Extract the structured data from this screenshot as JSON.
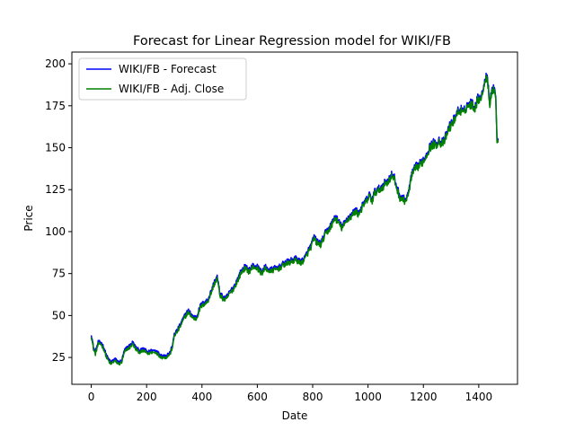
{
  "chart_data": {
    "type": "line",
    "title": "Forecast for Linear Regression model for WIKI/FB",
    "xlabel": "Date",
    "ylabel": "Price",
    "xlim": [
      -70,
      1540
    ],
    "ylim": [
      9,
      207
    ],
    "xticks": [
      0,
      200,
      400,
      600,
      800,
      1000,
      1200,
      1400
    ],
    "yticks": [
      25,
      50,
      75,
      100,
      125,
      150,
      175,
      200
    ],
    "grid": false,
    "legend_position": "top-left",
    "anchors": [
      [
        0,
        38
      ],
      [
        8,
        30
      ],
      [
        15,
        27
      ],
      [
        25,
        33
      ],
      [
        35,
        33
      ],
      [
        45,
        30
      ],
      [
        55,
        25
      ],
      [
        70,
        21
      ],
      [
        85,
        23
      ],
      [
        100,
        21
      ],
      [
        110,
        22
      ],
      [
        120,
        28
      ],
      [
        130,
        30
      ],
      [
        140,
        31
      ],
      [
        150,
        33
      ],
      [
        160,
        30
      ],
      [
        175,
        28
      ],
      [
        190,
        29
      ],
      [
        205,
        27
      ],
      [
        215,
        28
      ],
      [
        225,
        28
      ],
      [
        235,
        28
      ],
      [
        245,
        26
      ],
      [
        255,
        25
      ],
      [
        270,
        25
      ],
      [
        285,
        27
      ],
      [
        295,
        32
      ],
      [
        300,
        38
      ],
      [
        310,
        40
      ],
      [
        320,
        43
      ],
      [
        335,
        48
      ],
      [
        350,
        52
      ],
      [
        360,
        50
      ],
      [
        370,
        48
      ],
      [
        380,
        48
      ],
      [
        395,
        55
      ],
      [
        410,
        57
      ],
      [
        420,
        58
      ],
      [
        430,
        62
      ],
      [
        445,
        69
      ],
      [
        455,
        72
      ],
      [
        465,
        62
      ],
      [
        475,
        60
      ],
      [
        485,
        59
      ],
      [
        500,
        63
      ],
      [
        515,
        66
      ],
      [
        530,
        71
      ],
      [
        540,
        75
      ],
      [
        555,
        78
      ],
      [
        570,
        76
      ],
      [
        585,
        79
      ],
      [
        600,
        78
      ],
      [
        615,
        75
      ],
      [
        630,
        78
      ],
      [
        645,
        76
      ],
      [
        660,
        77
      ],
      [
        680,
        78
      ],
      [
        695,
        80
      ],
      [
        710,
        81
      ],
      [
        725,
        82
      ],
      [
        740,
        83
      ],
      [
        755,
        81
      ],
      [
        770,
        83
      ],
      [
        785,
        88
      ],
      [
        795,
        91
      ],
      [
        805,
        96
      ],
      [
        815,
        93
      ],
      [
        830,
        92
      ],
      [
        845,
        98
      ],
      [
        855,
        100
      ],
      [
        870,
        104
      ],
      [
        880,
        108
      ],
      [
        890,
        106
      ],
      [
        905,
        102
      ],
      [
        915,
        104
      ],
      [
        925,
        107
      ],
      [
        940,
        109
      ],
      [
        955,
        112
      ],
      [
        965,
        110
      ],
      [
        975,
        113
      ],
      [
        985,
        116
      ],
      [
        995,
        118
      ],
      [
        1005,
        121
      ],
      [
        1015,
        118
      ],
      [
        1025,
        123
      ],
      [
        1035,
        124
      ],
      [
        1045,
        125
      ],
      [
        1060,
        128
      ],
      [
        1075,
        130
      ],
      [
        1085,
        133
      ],
      [
        1095,
        131
      ],
      [
        1105,
        125
      ],
      [
        1115,
        120
      ],
      [
        1125,
        119
      ],
      [
        1135,
        118
      ],
      [
        1145,
        121
      ],
      [
        1155,
        131
      ],
      [
        1165,
        136
      ],
      [
        1175,
        138
      ],
      [
        1185,
        139
      ],
      [
        1195,
        141
      ],
      [
        1205,
        143
      ],
      [
        1215,
        147
      ],
      [
        1225,
        150
      ],
      [
        1235,
        152
      ],
      [
        1245,
        151
      ],
      [
        1255,
        154
      ],
      [
        1265,
        152
      ],
      [
        1275,
        153
      ],
      [
        1285,
        158
      ],
      [
        1295,
        162
      ],
      [
        1305,
        164
      ],
      [
        1315,
        168
      ],
      [
        1325,
        171
      ],
      [
        1335,
        172
      ],
      [
        1345,
        170
      ],
      [
        1355,
        174
      ],
      [
        1365,
        175
      ],
      [
        1375,
        176
      ],
      [
        1385,
        173
      ],
      [
        1395,
        178
      ],
      [
        1405,
        180
      ],
      [
        1410,
        178
      ],
      [
        1415,
        185
      ],
      [
        1420,
        188
      ],
      [
        1425,
        190
      ],
      [
        1430,
        193
      ],
      [
        1435,
        185
      ],
      [
        1440,
        175
      ],
      [
        1445,
        182
      ],
      [
        1450,
        184
      ],
      [
        1455,
        185
      ],
      [
        1460,
        183
      ],
      [
        1463,
        170
      ],
      [
        1466,
        155
      ],
      [
        1470,
        153
      ]
    ],
    "series": [
      {
        "name": "WIKI/FB - Forecast",
        "color": "#0000ff",
        "offset": 1.2
      },
      {
        "name": "WIKI/FB - Adj. Close",
        "color": "#008000",
        "offset": 0
      }
    ]
  }
}
